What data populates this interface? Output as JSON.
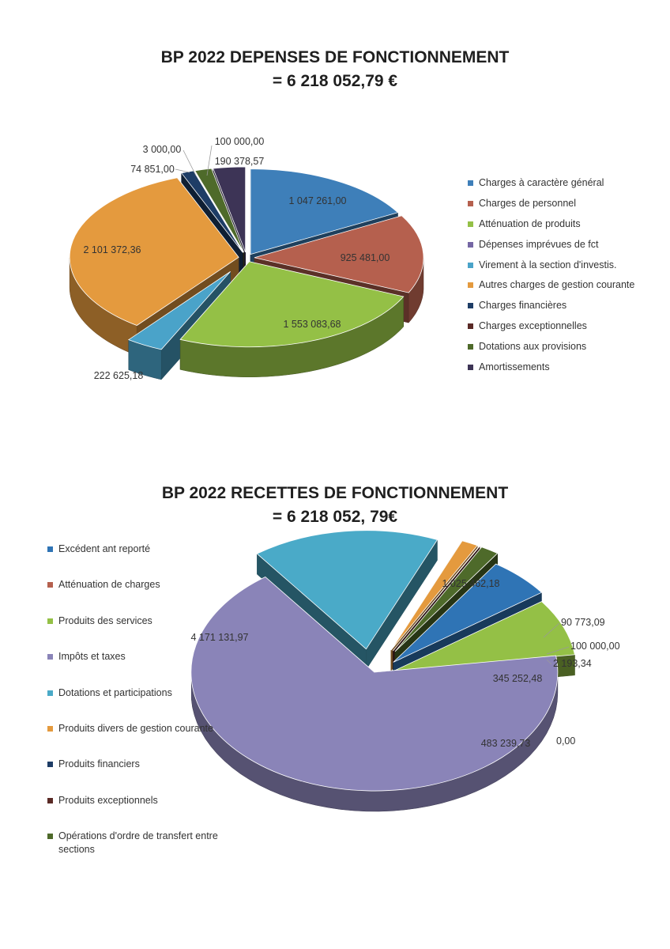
{
  "chart_data": [
    {
      "type": "pie",
      "title": "BP 2022 DEPENSES DE FONCTIONNEMENT",
      "subtitle": "= 6 218 052,79 €",
      "legend_position": "right",
      "slices": [
        {
          "name": "Charges à caractère général",
          "value": 1047261.0,
          "label": "1 047 261,00",
          "color": "#3e7fb9"
        },
        {
          "name": "Charges de personnel",
          "value": 925481.0,
          "label": "925 481,00",
          "color": "#b5604e"
        },
        {
          "name": "Atténuation de produits",
          "value": 1553083.68,
          "label": "1 553 083,68",
          "color": "#94c046"
        },
        {
          "name": "Dépenses imprévues de fct",
          "value": 0,
          "label": "",
          "color": "#7567a4"
        },
        {
          "name": "Virement à la section d'investis.",
          "value": 222625.18,
          "label": "222 625,18",
          "color": "#4aa3c9"
        },
        {
          "name": "Autres charges de gestion courante",
          "value": 2101372.36,
          "label": "2 101 372,36",
          "color": "#e49a3e"
        },
        {
          "name": "Charges financières",
          "value": 74851.0,
          "label": "74 851,00",
          "color": "#1e3d66"
        },
        {
          "name": "Charges exceptionnelles",
          "value": 3000.0,
          "label": "3 000,00",
          "color": "#5a2a26"
        },
        {
          "name": "Dotations aux provisions",
          "value": 100000.0,
          "label": "100 000,00",
          "color": "#4e6a2a"
        },
        {
          "name": "Amortissements",
          "value": 190378.57,
          "label": "190 378,57",
          "color": "#3d3456"
        }
      ]
    },
    {
      "type": "pie",
      "title": "BP 2022 RECETTES DE FONCTIONNEMENT",
      "subtitle": "= 6 218 052, 79€",
      "legend_position": "left",
      "slices": [
        {
          "name": "Excédent ant reporté",
          "value": 0,
          "label": "",
          "color": "#2f74b5"
        },
        {
          "name": "Atténuation de charges",
          "value": 0,
          "label": "",
          "color": "#b5604e"
        },
        {
          "name": "Produits des services",
          "value": 483239.73,
          "label": "483 239,73",
          "color": "#94c046"
        },
        {
          "name": "Impôts et taxes",
          "value": 4171131.97,
          "label": "4 171 131,97",
          "color": "#8a84b8"
        },
        {
          "name": "Dotations et participations",
          "value": 1025462.18,
          "label": "1 025 462,18",
          "color": "#4aaac8"
        },
        {
          "name": "Produits divers de gestion courante",
          "value": 90773.09,
          "label": "90 773,09",
          "color": "#e49a3e"
        },
        {
          "name": "Produits financiers",
          "value": 0.0,
          "label": "0,00",
          "color": "#1e3d66"
        },
        {
          "name": "Produits exceptionnels",
          "value": 2193.34,
          "label": "2 193,34",
          "color": "#5a2a26"
        },
        {
          "name": "Opérations d'ordre de transfert entre sections",
          "value": 100000.0,
          "label": "100 000,00",
          "color": "#4e6a2a"
        }
      ],
      "extra_labels": [
        "345 252,48"
      ]
    }
  ]
}
